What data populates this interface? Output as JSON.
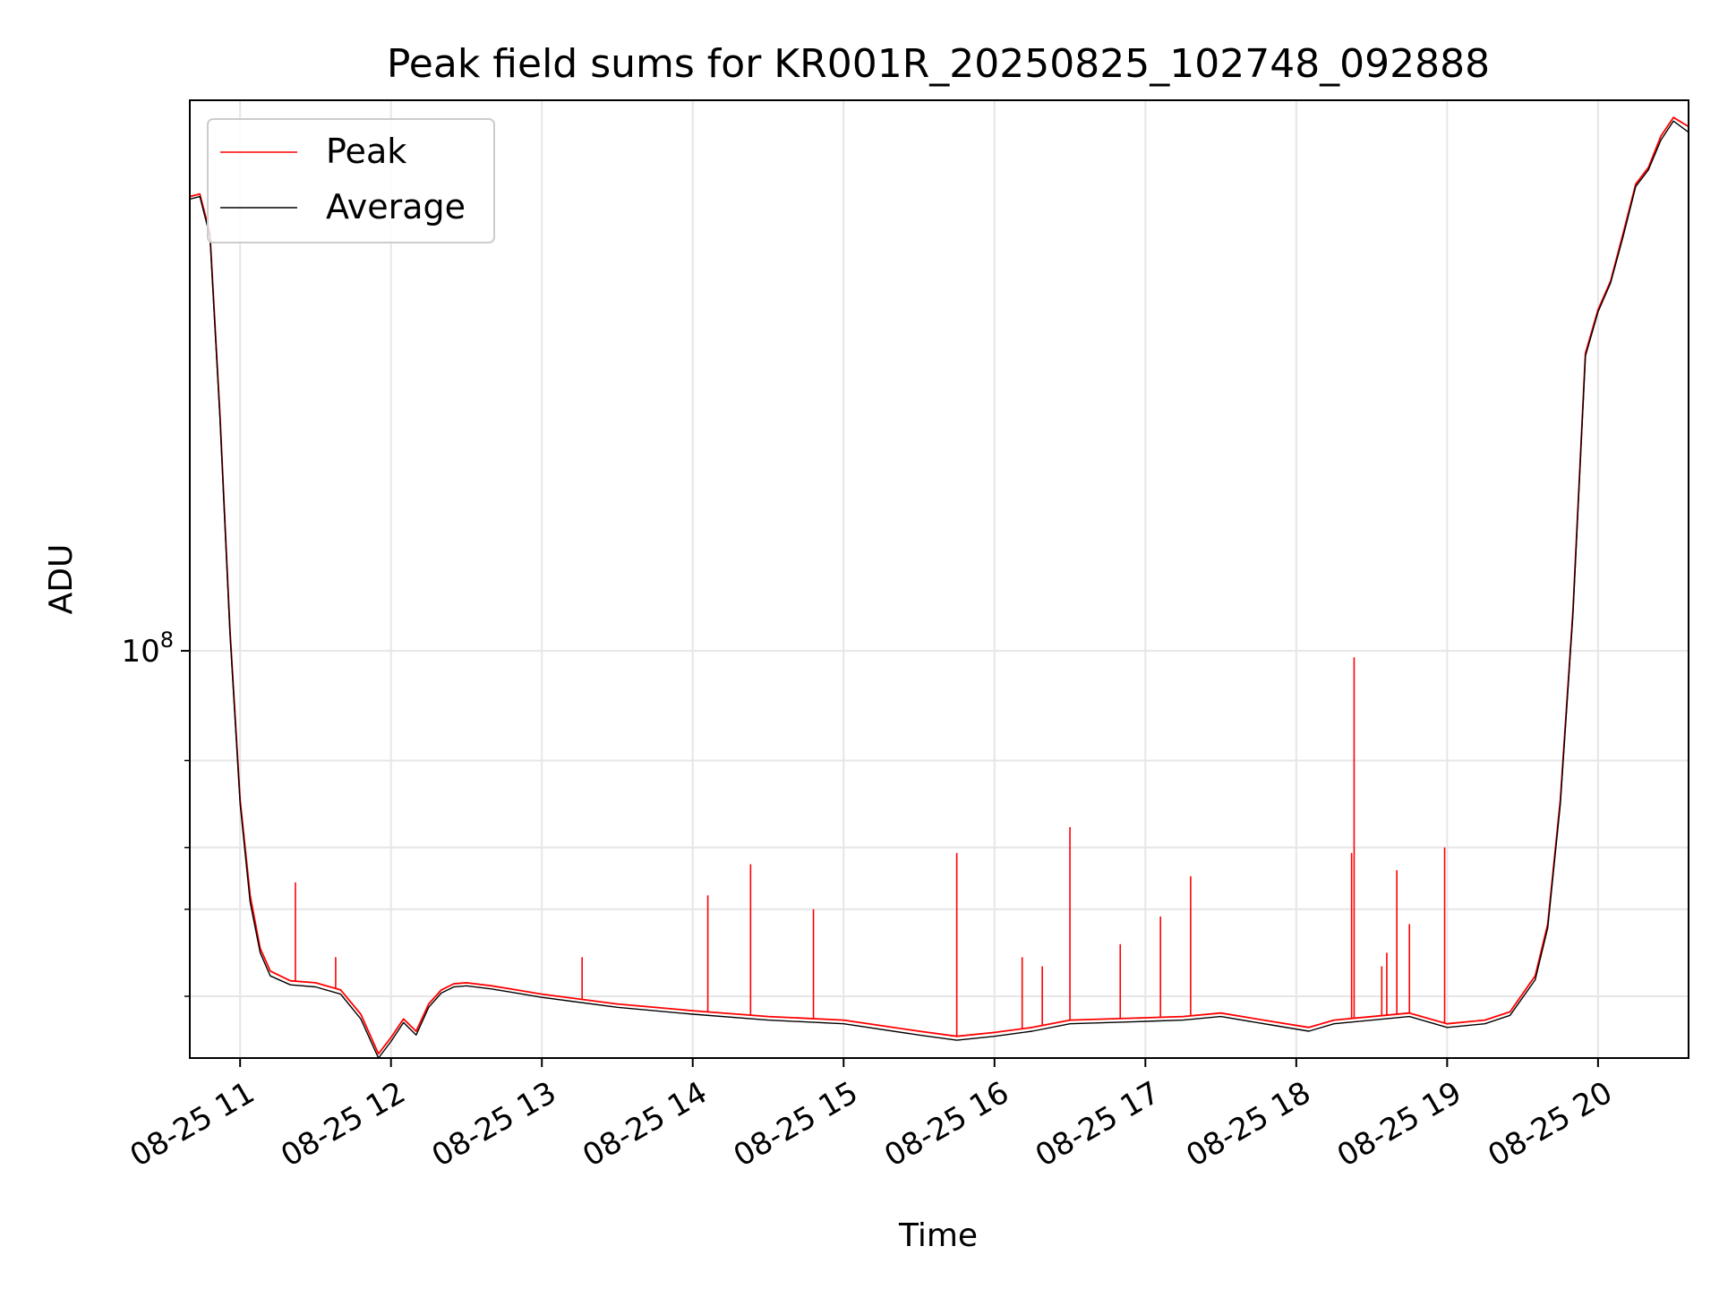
{
  "chart_data": {
    "type": "line",
    "title": "Peak field sums for KR001R_20250825_102748_092888",
    "xlabel": "Time",
    "ylabel": "ADU",
    "yscale": "log",
    "grid": true,
    "legend_position": "upper-left",
    "xlim": [
      "2025-08-25 10:40",
      "2025-08-25 20:36"
    ],
    "ylim": [
      15000000,
      1300000000
    ],
    "x_ticks": [
      "08-25 11",
      "08-25 12",
      "08-25 13",
      "08-25 14",
      "08-25 15",
      "08-25 16",
      "08-25 17",
      "08-25 18",
      "08-25 19",
      "08-25 20"
    ],
    "y_tick_major": {
      "base": "10",
      "exponent": "8",
      "value": 100000000
    },
    "y_minor_ticks": [
      20000000,
      30000000,
      40000000,
      60000000
    ],
    "series": [
      {
        "name": "Peak",
        "color": "#ff0000",
        "x": [
          "2025-08-25 10:40",
          "2025-08-25 10:44",
          "2025-08-25 10:48",
          "2025-08-25 10:52",
          "2025-08-25 10:56",
          "2025-08-25 11:00",
          "2025-08-25 11:04",
          "2025-08-25 11:08",
          "2025-08-25 11:12",
          "2025-08-25 11:20",
          "2025-08-25 11:30",
          "2025-08-25 11:40",
          "2025-08-25 11:48",
          "2025-08-25 11:55",
          "2025-08-25 12:00",
          "2025-08-25 12:05",
          "2025-08-25 12:10",
          "2025-08-25 12:15",
          "2025-08-25 12:20",
          "2025-08-25 12:25",
          "2025-08-25 12:30",
          "2025-08-25 12:40",
          "2025-08-25 12:50",
          "2025-08-25 13:00",
          "2025-08-25 13:30",
          "2025-08-25 14:00",
          "2025-08-25 14:30",
          "2025-08-25 15:00",
          "2025-08-25 15:30",
          "2025-08-25 15:45",
          "2025-08-25 16:00",
          "2025-08-25 16:15",
          "2025-08-25 16:30",
          "2025-08-25 17:00",
          "2025-08-25 17:15",
          "2025-08-25 17:30",
          "2025-08-25 17:50",
          "2025-08-25 18:05",
          "2025-08-25 18:15",
          "2025-08-25 18:45",
          "2025-08-25 19:00",
          "2025-08-25 19:15",
          "2025-08-25 19:25",
          "2025-08-25 19:35",
          "2025-08-25 19:40",
          "2025-08-25 19:45",
          "2025-08-25 19:50",
          "2025-08-25 19:55",
          "2025-08-25 20:00",
          "2025-08-25 20:05",
          "2025-08-25 20:10",
          "2025-08-25 20:15",
          "2025-08-25 20:20",
          "2025-08-25 20:25",
          "2025-08-25 20:30",
          "2025-08-25 20:36"
        ],
        "y": [
          830000000,
          840000000,
          700000000,
          300000000,
          110000000,
          50000000,
          32000000,
          25000000,
          22500000,
          21500000,
          21300000,
          20600000,
          18400000,
          15300000,
          16500000,
          18000000,
          17000000,
          19300000,
          20600000,
          21200000,
          21300000,
          21000000,
          20600000,
          20200000,
          19300000,
          18700000,
          18200000,
          17900000,
          17000000,
          16600000,
          16900000,
          17300000,
          17900000,
          18100000,
          18200000,
          18500000,
          17800000,
          17300000,
          17900000,
          18500000,
          17600000,
          17900000,
          18600000,
          22000000,
          28000000,
          50000000,
          120000000,
          400000000,
          490000000,
          560000000,
          700000000,
          880000000,
          950000000,
          1100000000,
          1200000000,
          1150000000
        ],
        "spikes": [
          {
            "x": "2025-08-25 11:22",
            "y": 34000000
          },
          {
            "x": "2025-08-25 11:38",
            "y": 24000000
          },
          {
            "x": "2025-08-25 13:16",
            "y": 24000000
          },
          {
            "x": "2025-08-25 14:06",
            "y": 32000000
          },
          {
            "x": "2025-08-25 14:23",
            "y": 37000000
          },
          {
            "x": "2025-08-25 14:48",
            "y": 30000000
          },
          {
            "x": "2025-08-25 15:45",
            "y": 39000000
          },
          {
            "x": "2025-08-25 16:11",
            "y": 24000000
          },
          {
            "x": "2025-08-25 16:19",
            "y": 23000000
          },
          {
            "x": "2025-08-25 16:30",
            "y": 44000000
          },
          {
            "x": "2025-08-25 16:50",
            "y": 25500000
          },
          {
            "x": "2025-08-25 17:06",
            "y": 29000000
          },
          {
            "x": "2025-08-25 17:18",
            "y": 35000000
          },
          {
            "x": "2025-08-25 18:22",
            "y": 39000000
          },
          {
            "x": "2025-08-25 18:23",
            "y": 97000000
          },
          {
            "x": "2025-08-25 18:34",
            "y": 23000000
          },
          {
            "x": "2025-08-25 18:36",
            "y": 24500000
          },
          {
            "x": "2025-08-25 18:40",
            "y": 36000000
          },
          {
            "x": "2025-08-25 18:45",
            "y": 28000000
          },
          {
            "x": "2025-08-25 18:59",
            "y": 40000000
          }
        ]
      },
      {
        "name": "Average",
        "color": "#000000",
        "x": [
          "2025-08-25 10:40",
          "2025-08-25 10:44",
          "2025-08-25 10:48",
          "2025-08-25 10:52",
          "2025-08-25 10:56",
          "2025-08-25 11:00",
          "2025-08-25 11:04",
          "2025-08-25 11:08",
          "2025-08-25 11:12",
          "2025-08-25 11:20",
          "2025-08-25 11:30",
          "2025-08-25 11:40",
          "2025-08-25 11:48",
          "2025-08-25 11:55",
          "2025-08-25 12:00",
          "2025-08-25 12:05",
          "2025-08-25 12:10",
          "2025-08-25 12:15",
          "2025-08-25 12:20",
          "2025-08-25 12:25",
          "2025-08-25 12:30",
          "2025-08-25 12:40",
          "2025-08-25 12:50",
          "2025-08-25 13:00",
          "2025-08-25 13:30",
          "2025-08-25 14:00",
          "2025-08-25 14:30",
          "2025-08-25 15:00",
          "2025-08-25 15:30",
          "2025-08-25 15:45",
          "2025-08-25 16:00",
          "2025-08-25 16:15",
          "2025-08-25 16:30",
          "2025-08-25 17:00",
          "2025-08-25 17:15",
          "2025-08-25 17:30",
          "2025-08-25 17:50",
          "2025-08-25 18:05",
          "2025-08-25 18:15",
          "2025-08-25 18:45",
          "2025-08-25 19:00",
          "2025-08-25 19:15",
          "2025-08-25 19:25",
          "2025-08-25 19:35",
          "2025-08-25 19:40",
          "2025-08-25 19:45",
          "2025-08-25 19:50",
          "2025-08-25 19:55",
          "2025-08-25 20:00",
          "2025-08-25 20:05",
          "2025-08-25 20:10",
          "2025-08-25 20:15",
          "2025-08-25 20:20",
          "2025-08-25 20:25",
          "2025-08-25 20:30",
          "2025-08-25 20:36"
        ],
        "y": [
          820000000,
          830000000,
          690000000,
          295000000,
          108000000,
          49000000,
          31000000,
          24500000,
          22000000,
          21100000,
          20900000,
          20200000,
          18000000,
          15000000,
          16200000,
          17700000,
          16700000,
          19000000,
          20300000,
          20900000,
          21000000,
          20700000,
          20300000,
          19900000,
          19000000,
          18400000,
          17900000,
          17600000,
          16700000,
          16300000,
          16600000,
          17000000,
          17600000,
          17800000,
          17900000,
          18200000,
          17500000,
          17000000,
          17600000,
          18200000,
          17300000,
          17600000,
          18300000,
          21600000,
          27500000,
          49000000,
          118000000,
          395000000,
          485000000,
          555000000,
          690000000,
          870000000,
          940000000,
          1080000000,
          1180000000,
          1120000000
        ]
      }
    ]
  }
}
